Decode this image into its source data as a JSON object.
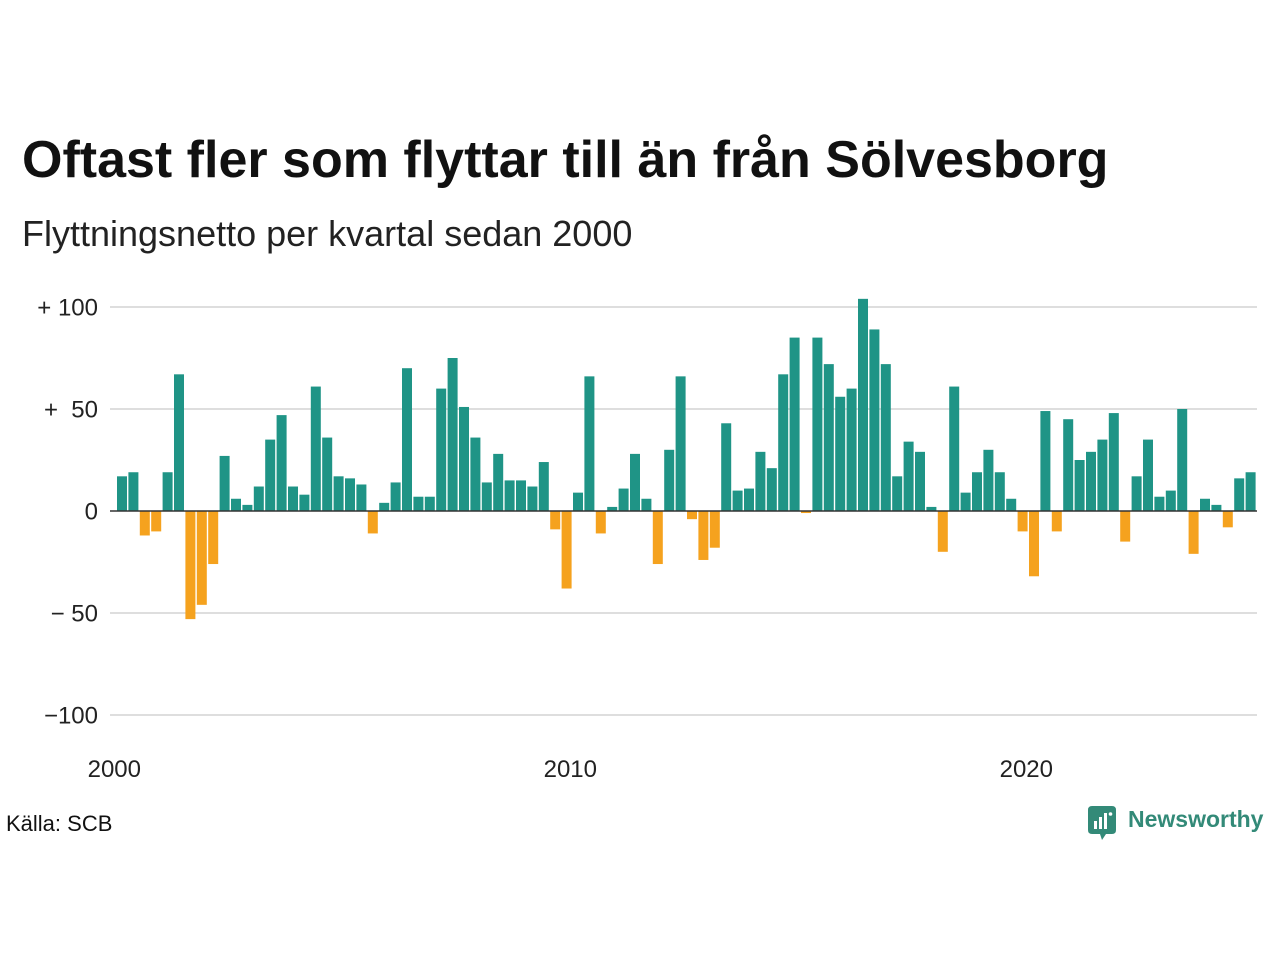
{
  "chart_data": {
    "type": "bar",
    "title": "Oftast fler som flyttar till än från Sölvesborg",
    "subtitle": "Flyttningsnetto per kvartal sedan 2000",
    "x": [
      2000,
      2000.25,
      2000.5,
      2000.75,
      2001,
      2001.25,
      2001.5,
      2001.75,
      2002,
      2002.25,
      2002.5,
      2002.75,
      2003,
      2003.25,
      2003.5,
      2003.75,
      2004,
      2004.25,
      2004.5,
      2004.75,
      2005,
      2005.25,
      2005.5,
      2005.75,
      2006,
      2006.25,
      2006.5,
      2006.75,
      2007,
      2007.25,
      2007.5,
      2007.75,
      2008,
      2008.25,
      2008.5,
      2008.75,
      2009,
      2009.25,
      2009.5,
      2009.75,
      2010,
      2010.25,
      2010.5,
      2010.75,
      2011,
      2011.25,
      2011.5,
      2011.75,
      2012,
      2012.25,
      2012.5,
      2012.75,
      2013,
      2013.25,
      2013.5,
      2013.75,
      2014,
      2014.25,
      2014.5,
      2014.75,
      2015,
      2015.25,
      2015.5,
      2015.75,
      2016,
      2016.25,
      2016.5,
      2016.75,
      2017,
      2017.25,
      2017.5,
      2017.75,
      2018,
      2018.25,
      2018.5,
      2018.75,
      2019,
      2019.25,
      2019.5,
      2019.75,
      2020,
      2020.25,
      2020.5,
      2020.75,
      2021,
      2021.25,
      2021.5,
      2021.75,
      2022,
      2022.25,
      2022.5,
      2022.75,
      2023,
      2023.25,
      2023.5,
      2023.75,
      2024,
      2024.25,
      2024.5,
      2024.75
    ],
    "values": [
      17,
      19,
      -12,
      -10,
      19,
      67,
      -53,
      -46,
      -26,
      27,
      6,
      3,
      12,
      35,
      47,
      12,
      8,
      61,
      36,
      17,
      16,
      13,
      -11,
      4,
      14,
      70,
      7,
      7,
      60,
      75,
      51,
      36,
      14,
      28,
      15,
      15,
      12,
      24,
      -9,
      -38,
      9,
      66,
      -11,
      2,
      11,
      28,
      6,
      -26,
      30,
      66,
      -4,
      -24,
      -18,
      43,
      10,
      11,
      29,
      21,
      67,
      85,
      -1,
      85,
      72,
      56,
      60,
      104,
      89,
      72,
      17,
      34,
      29,
      2,
      -20,
      61,
      9,
      19,
      30,
      19,
      6,
      -10,
      -32,
      49,
      -10,
      45,
      25,
      29,
      35,
      48,
      -15,
      17,
      35,
      7,
      10,
      50,
      -21,
      6,
      3,
      -8,
      16,
      19
    ],
    "xlim": [
      2000,
      2025
    ],
    "ylim": [
      -100,
      100
    ],
    "xticks": [
      2000,
      2010,
      2020
    ],
    "xtick_labels": [
      "2000",
      "2010",
      "2020"
    ],
    "yticks": [
      100,
      50,
      0,
      -50,
      -100
    ],
    "ytick_labels": [
      "+ 100",
      "+  50",
      "0",
      "− 50",
      "−100"
    ],
    "grid": true,
    "legend": false,
    "colors": {
      "positive": "#1f9486",
      "negative": "#f5a21e",
      "zero_line": "#333333",
      "grid": "#dedede",
      "text": "#222222"
    }
  },
  "footer": {
    "source": "Källa: SCB",
    "logo_text": "Newsworthy",
    "logo_icon": "newsworthy-logo-icon",
    "logo_color": "#338a78"
  }
}
